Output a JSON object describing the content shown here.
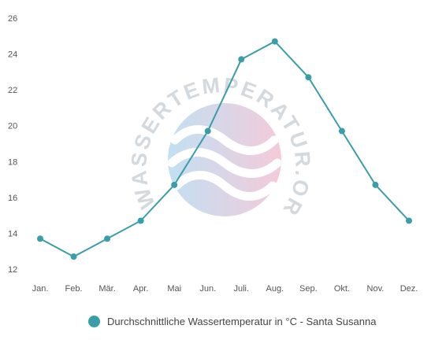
{
  "chart_data": {
    "type": "line",
    "categories": [
      "Jan.",
      "Feb.",
      "Mär.",
      "Apr.",
      "Mai",
      "Jun.",
      "Juli.",
      "Aug.",
      "Sep.",
      "Okt.",
      "Nov.",
      "Dez."
    ],
    "series": [
      {
        "name": "Durchschnittliche Wassertemperatur in °C - Santa Susanna",
        "values": [
          13.7,
          12.7,
          13.7,
          14.7,
          16.7,
          19.7,
          23.7,
          24.7,
          22.7,
          19.7,
          16.7,
          14.7
        ]
      }
    ],
    "ylim": [
      12,
      26
    ],
    "yticks": [
      12,
      14,
      16,
      18,
      20,
      22,
      24,
      26
    ],
    "grid": false,
    "legend": "bottom",
    "colors": {
      "series": "#3a9ea8",
      "tick_text": "#555555"
    }
  },
  "watermark": {
    "text": "WASSERTEMPERATUR.ORG"
  }
}
